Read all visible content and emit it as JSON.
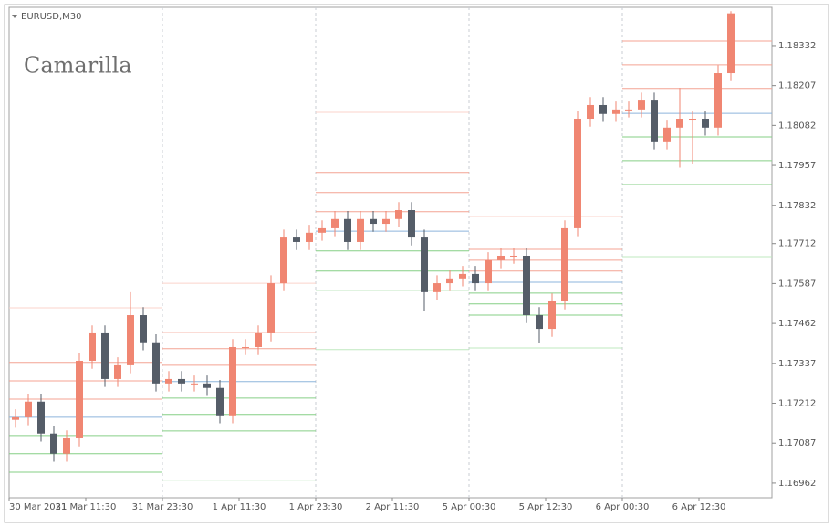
{
  "chart_data": {
    "type": "candlestick",
    "symbol": "EURUSD,M30",
    "title": "Camarilla",
    "categories": [
      "30 Mar 2021",
      null,
      null,
      null,
      null,
      null,
      "31 Mar 11:30",
      null,
      null,
      null,
      null,
      null,
      "31 Mar 23:30",
      null,
      null,
      null,
      null,
      null,
      "1 Apr 11:30",
      null,
      null,
      null,
      null,
      null,
      "1 Apr 23:30",
      null,
      null,
      null,
      null,
      null,
      "2 Apr 11:30",
      null,
      null,
      null,
      null,
      null,
      "5 Apr 00:30",
      null,
      null,
      null,
      null,
      null,
      "5 Apr 12:30",
      null,
      null,
      null,
      null,
      null,
      "6 Apr 00:30",
      null,
      null,
      null,
      null,
      null,
      "6 Apr 12:30",
      null,
      null
    ],
    "open": [
      1.1716,
      1.17168,
      1.17217,
      1.17117,
      1.17054,
      1.17102,
      1.17345,
      1.17431,
      1.17288,
      1.17331,
      1.17488,
      1.17403,
      1.17274,
      1.17288,
      1.17274,
      1.17274,
      1.1726,
      1.17174,
      1.17388,
      1.17388,
      1.17431,
      1.17588,
      1.17731,
      1.17717,
      1.17746,
      1.1776,
      1.17789,
      1.17717,
      1.17789,
      1.17774,
      1.17789,
      1.17817,
      1.17731,
      1.1756,
      1.17588,
      1.17603,
      1.17617,
      1.17588,
      1.1766,
      1.17674,
      1.17674,
      1.17488,
      1.17445,
      1.17531,
      1.1776,
      1.18103,
      1.18146,
      1.18118,
      1.18132,
      1.18132,
      1.1816,
      1.18032,
      1.18075,
      1.18103,
      1.18103,
      1.18075,
      1.18246
    ],
    "high": [
      1.17193,
      1.17242,
      1.17242,
      1.17142,
      1.17127,
      1.1737,
      1.17456,
      1.17456,
      1.17356,
      1.1756,
      1.17513,
      1.17428,
      1.17313,
      1.17313,
      1.17299,
      1.17299,
      1.17285,
      1.17413,
      1.17413,
      1.17456,
      1.17613,
      1.17756,
      1.17756,
      1.17771,
      1.17785,
      1.17814,
      1.17814,
      1.17814,
      1.17814,
      1.17814,
      1.17842,
      1.17842,
      1.17756,
      1.17613,
      1.17628,
      1.17642,
      1.17642,
      1.17685,
      1.17699,
      1.17699,
      1.17699,
      1.17513,
      1.17556,
      1.17785,
      1.18128,
      1.18171,
      1.18171,
      1.18157,
      1.18157,
      1.18185,
      1.18185,
      1.181,
      1.182,
      1.18128,
      1.18128,
      1.18271,
      1.1844
    ],
    "low": [
      1.17135,
      1.17143,
      1.17092,
      1.17029,
      1.17029,
      1.17077,
      1.1732,
      1.17263,
      1.17263,
      1.17306,
      1.17378,
      1.17249,
      1.17249,
      1.17249,
      1.17249,
      1.17235,
      1.17149,
      1.17149,
      1.17363,
      1.17363,
      1.17406,
      1.17563,
      1.17692,
      1.17692,
      1.17721,
      1.17735,
      1.17692,
      1.17692,
      1.17749,
      1.17749,
      1.17764,
      1.17706,
      1.175,
      1.17535,
      1.17563,
      1.17578,
      1.17563,
      1.17563,
      1.17635,
      1.17649,
      1.17463,
      1.174,
      1.1742,
      1.17506,
      1.17735,
      1.18078,
      1.18093,
      1.18093,
      1.18107,
      1.18107,
      1.18007,
      1.18007,
      1.1795,
      1.1796,
      1.1805,
      1.1805,
      1.18221
    ],
    "close": [
      1.17168,
      1.17217,
      1.17117,
      1.17054,
      1.17102,
      1.17345,
      1.17431,
      1.17288,
      1.17331,
      1.17488,
      1.17403,
      1.17274,
      1.17288,
      1.17274,
      1.17274,
      1.1726,
      1.17174,
      1.17388,
      1.17388,
      1.17431,
      1.17588,
      1.17731,
      1.17717,
      1.17746,
      1.1776,
      1.17789,
      1.17717,
      1.17789,
      1.17774,
      1.17789,
      1.17817,
      1.17731,
      1.1756,
      1.17588,
      1.17603,
      1.17617,
      1.17588,
      1.1766,
      1.17674,
      1.17674,
      1.17488,
      1.17445,
      1.17531,
      1.1776,
      1.18103,
      1.18146,
      1.18118,
      1.18132,
      1.18132,
      1.1816,
      1.18032,
      1.18075,
      1.18103,
      1.18103,
      1.18075,
      1.18246,
      1.18433
    ],
    "up_color": "#f08672",
    "down_color": "#555d68",
    "ylim": [
      1.16916,
      1.18452
    ],
    "yticks": [
      1.16962,
      1.17087,
      1.17212,
      1.17337,
      1.17462,
      1.17587,
      1.17712,
      1.17832,
      1.17957,
      1.18082,
      1.18207,
      1.18332
    ],
    "levels": [
      [
        1.17511,
        1.1734,
        1.17282,
        1.17225,
        1.17168,
        1.17111,
        1.17054,
        1.16996,
        null
      ],
      [
        1.17588,
        1.17434,
        1.17383,
        1.17331,
        1.1728,
        1.17228,
        1.17177,
        1.17125,
        1.16971
      ],
      [
        1.18123,
        1.17935,
        1.17872,
        1.17812,
        1.17751,
        1.17689,
        1.17626,
        1.17566,
        1.1738
      ],
      [
        1.17797,
        1.17694,
        1.1766,
        1.17626,
        1.17591,
        1.17557,
        1.17523,
        1.17488,
        1.17385
      ],
      [
        null,
        1.18346,
        1.18272,
        1.18198,
        1.1812,
        1.18046,
        1.17972,
        1.17897,
        1.17671
      ]
    ],
    "level_colors": [
      "#fbd3cb",
      "#f4a393",
      "#f4a393",
      "#f4a393",
      "#8db5dc",
      "#86cf86",
      "#86cf86",
      "#86cf86",
      "#bfe8bf"
    ]
  }
}
